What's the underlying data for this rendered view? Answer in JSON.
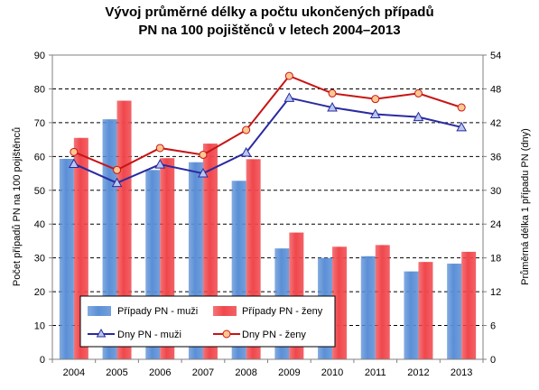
{
  "chart_data": {
    "type": "bar",
    "title_lines": [
      "Vývoj průměrné délky a počtu ukončených případů",
      "PN na 100 pojištěnců v letech 2004–2013"
    ],
    "categories": [
      "2004",
      "2005",
      "2006",
      "2007",
      "2008",
      "2009",
      "2010",
      "2011",
      "2012",
      "2013"
    ],
    "ylabel_left": "Počet případů PN na 100 pojištěnců",
    "ylabel_right": "Průměrná délka 1 případu PN (dny)",
    "ylim_left": [
      0,
      90
    ],
    "ylim_right": [
      0,
      54
    ],
    "yticks_left": [
      "0",
      "10",
      "20",
      "30",
      "40",
      "50",
      "60",
      "70",
      "80",
      "90"
    ],
    "yticks_right": [
      "0",
      "6",
      "12",
      "18",
      "24",
      "30",
      "36",
      "42",
      "48",
      "54"
    ],
    "grid": "horizontal-dashed",
    "legend_position": "bottom-left",
    "series": [
      {
        "name": "Případy PN - muži",
        "kind": "bar",
        "axis": "left",
        "color": "#5b8fd6",
        "values": [
          59.3,
          71.0,
          56.0,
          58.3,
          52.8,
          32.8,
          30.0,
          30.5,
          26.0,
          28.3
        ]
      },
      {
        "name": "Případy PN - ženy",
        "kind": "bar",
        "axis": "left",
        "color": "#f0474c",
        "values": [
          65.5,
          76.5,
          59.5,
          63.8,
          59.2,
          37.5,
          33.3,
          33.8,
          28.8,
          31.8
        ]
      },
      {
        "name": "Dny PN - muži",
        "kind": "line",
        "axis": "right",
        "color": "#2a2aa0",
        "marker": "triangle",
        "marker_fill": "#b8c8ee",
        "values": [
          34.7,
          31.3,
          34.6,
          33.0,
          36.7,
          46.4,
          44.7,
          43.5,
          43.0,
          41.2
        ]
      },
      {
        "name": "Dny PN - ženy",
        "kind": "line",
        "axis": "right",
        "color": "#c81414",
        "marker": "circle",
        "marker_fill": "#ffc890",
        "values": [
          36.8,
          33.6,
          37.5,
          36.3,
          40.7,
          50.3,
          47.2,
          46.2,
          47.2,
          44.7
        ]
      }
    ]
  }
}
